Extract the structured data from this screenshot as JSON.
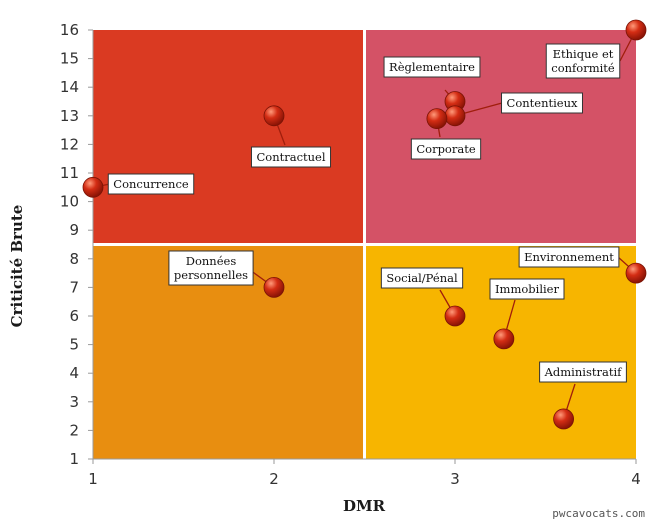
{
  "chart_data": {
    "type": "scatter",
    "xlabel": "DMR",
    "ylabel": "Criticité Brute",
    "xlim": [
      1,
      4
    ],
    "ylim": [
      1,
      16
    ],
    "x_ticks": [
      1,
      2,
      3,
      4
    ],
    "y_ticks": [
      1,
      2,
      3,
      4,
      5,
      6,
      7,
      8,
      9,
      10,
      11,
      12,
      13,
      14,
      15,
      16
    ],
    "quadrants": [
      {
        "x": [
          1,
          2.5
        ],
        "y": [
          8.5,
          16
        ],
        "color": "#da3a22"
      },
      {
        "x": [
          2.5,
          4
        ],
        "y": [
          8.5,
          16
        ],
        "color": "#d45266"
      },
      {
        "x": [
          1,
          2.5
        ],
        "y": [
          1,
          8.5
        ],
        "color": "#e88e10"
      },
      {
        "x": [
          2.5,
          4
        ],
        "y": [
          1,
          8.5
        ],
        "color": "#f7b500"
      }
    ],
    "point_color": "#d42d14",
    "points": [
      {
        "label": "Concurrence",
        "x": 1.0,
        "y": 10.5
      },
      {
        "label": "Contractuel",
        "x": 2.0,
        "y": 13.0
      },
      {
        "label": "Règlementaire",
        "x": 3.0,
        "y": 13.5
      },
      {
        "label": "Contentieux",
        "x": 3.0,
        "y": 13.0
      },
      {
        "label": "Corporate",
        "x": 2.9,
        "y": 12.9
      },
      {
        "label": "Ethique et\nconformité",
        "x": 4.0,
        "y": 16.0
      },
      {
        "label": "Données\npersonnelles",
        "x": 2.0,
        "y": 7.0
      },
      {
        "label": "Social/Pénal",
        "x": 3.0,
        "y": 6.0
      },
      {
        "label": "Immobilier",
        "x": 3.27,
        "y": 5.2
      },
      {
        "label": "Environnement",
        "x": 4.0,
        "y": 7.5
      },
      {
        "label": "Administratif",
        "x": 3.6,
        "y": 2.4
      }
    ]
  },
  "watermark": "pwcavocats.com"
}
